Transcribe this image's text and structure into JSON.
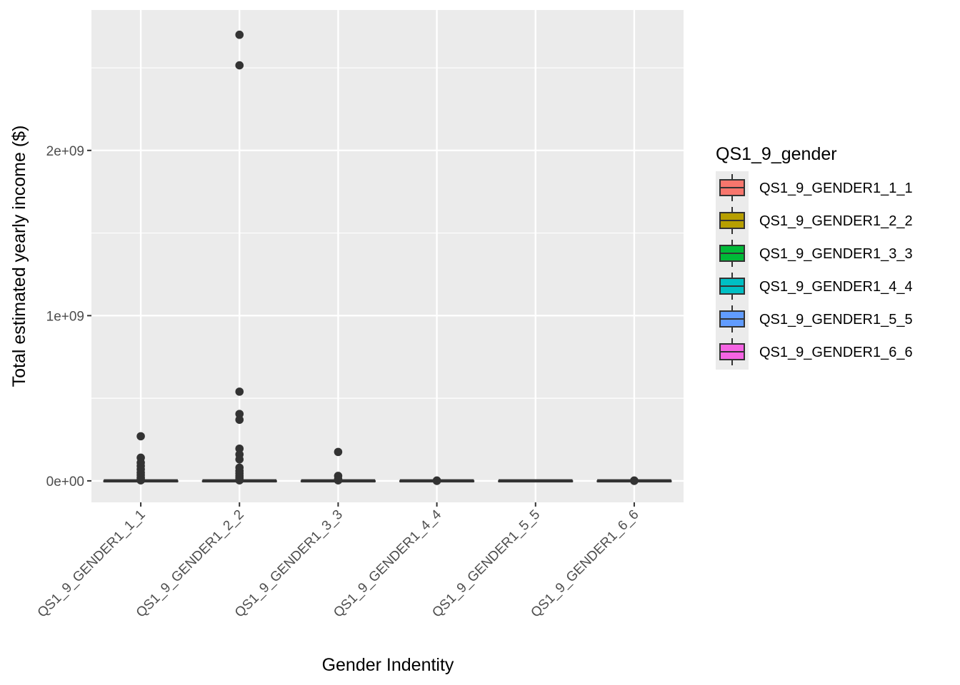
{
  "chart_data": {
    "type": "boxplot",
    "title": "",
    "xlabel": "Gender Indentity",
    "ylabel": "Total estimated yearly income ($)",
    "categories": [
      "QS1_9_GENDER1_1_1",
      "QS1_9_GENDER1_2_2",
      "QS1_9_GENDER1_3_3",
      "QS1_9_GENDER1_4_4",
      "QS1_9_GENDER1_5_5",
      "QS1_9_GENDER1_6_6"
    ],
    "ylim": [
      -130000000,
      2850000000
    ],
    "yticks": [
      0,
      1000000000,
      2000000000
    ],
    "ytick_labels": [
      "0e+00",
      "1e+09",
      "2e+09"
    ],
    "grid": true,
    "legend": {
      "title": "QS1_9_gender",
      "position": "right",
      "entries": [
        {
          "label": "QS1_9_GENDER1_1_1",
          "color": "#F8766D"
        },
        {
          "label": "QS1_9_GENDER1_2_2",
          "color": "#B79F00"
        },
        {
          "label": "QS1_9_GENDER1_3_3",
          "color": "#00BA38"
        },
        {
          "label": "QS1_9_GENDER1_4_4",
          "color": "#00BFC4"
        },
        {
          "label": "QS1_9_GENDER1_5_5",
          "color": "#619CFF"
        },
        {
          "label": "QS1_9_GENDER1_6_6",
          "color": "#F564E3"
        }
      ]
    },
    "series": [
      {
        "category": "QS1_9_GENDER1_1_1",
        "median": 0,
        "q1": 0,
        "q3": 0,
        "outliers": [
          270000000,
          140000000,
          110000000,
          90000000,
          70000000,
          50000000,
          35000000,
          20000000,
          10000000,
          3000000
        ]
      },
      {
        "category": "QS1_9_GENDER1_2_2",
        "median": 0,
        "q1": 0,
        "q3": 0,
        "outliers": [
          2700000000,
          2515000000,
          540000000,
          405000000,
          370000000,
          195000000,
          160000000,
          130000000,
          80000000,
          60000000,
          45000000,
          30000000,
          20000000,
          10000000,
          3000000
        ]
      },
      {
        "category": "QS1_9_GENDER1_3_3",
        "median": 0,
        "q1": 0,
        "q3": 0,
        "outliers": [
          175000000,
          30000000,
          10000000,
          3000000
        ]
      },
      {
        "category": "QS1_9_GENDER1_4_4",
        "median": 0,
        "q1": 0,
        "q3": 0,
        "outliers": [
          2000000,
          0
        ]
      },
      {
        "category": "QS1_9_GENDER1_5_5",
        "median": 0,
        "q1": 0,
        "q3": 0,
        "outliers": []
      },
      {
        "category": "QS1_9_GENDER1_6_6",
        "median": 0,
        "q1": 0,
        "q3": 0,
        "outliers": [
          2000000,
          0
        ]
      }
    ]
  }
}
